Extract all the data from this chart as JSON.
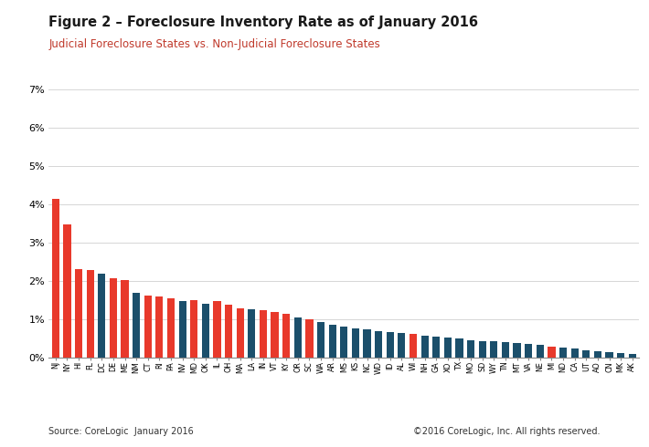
{
  "title": "Figure 2 – Foreclosure Inventory Rate as of January 2016",
  "subtitle": "Judicial Foreclosure States vs. Non-Judicial Foreclosure States",
  "title_color": "#1a1a1a",
  "subtitle_color": "#c0392b",
  "source_left": "Source: CoreLogic  January 2016",
  "source_right": "©2016 CoreLogic, Inc. All rights reserved.",
  "judicial_color": "#e8392b",
  "nonjudicial_color": "#1b4f6b",
  "ylim": [
    0,
    0.07
  ],
  "yticks": [
    0.0,
    0.01,
    0.02,
    0.03,
    0.04,
    0.05,
    0.06,
    0.07
  ],
  "ytick_labels": [
    "0%",
    "1%",
    "2%",
    "3%",
    "4%",
    "5%",
    "6%",
    "7%"
  ],
  "bars": [
    {
      "state": "NJ",
      "type": "J",
      "value": 0.0415
    },
    {
      "state": "NY",
      "type": "J",
      "value": 0.0348
    },
    {
      "state": "HI",
      "type": "J",
      "value": 0.0232
    },
    {
      "state": "FL",
      "type": "J",
      "value": 0.0228
    },
    {
      "state": "DC",
      "type": "NJ",
      "value": 0.022
    },
    {
      "state": "DE",
      "type": "J",
      "value": 0.0207
    },
    {
      "state": "ME",
      "type": "J",
      "value": 0.0202
    },
    {
      "state": "NM",
      "type": "NJ",
      "value": 0.017
    },
    {
      "state": "CT",
      "type": "J",
      "value": 0.0163
    },
    {
      "state": "RI",
      "type": "J",
      "value": 0.016
    },
    {
      "state": "PA",
      "type": "J",
      "value": 0.0155
    },
    {
      "state": "NV",
      "type": "NJ",
      "value": 0.0148
    },
    {
      "state": "MD",
      "type": "J",
      "value": 0.015
    },
    {
      "state": "OK",
      "type": "NJ",
      "value": 0.014
    },
    {
      "state": "IL",
      "type": "J",
      "value": 0.0148
    },
    {
      "state": "OH",
      "type": "J",
      "value": 0.0138
    },
    {
      "state": "MA",
      "type": "J",
      "value": 0.0128
    },
    {
      "state": "LA",
      "type": "NJ",
      "value": 0.0126
    },
    {
      "state": "IN",
      "type": "J",
      "value": 0.0124
    },
    {
      "state": "VT",
      "type": "J",
      "value": 0.012
    },
    {
      "state": "KY",
      "type": "J",
      "value": 0.0115
    },
    {
      "state": "OR",
      "type": "NJ",
      "value": 0.0105
    },
    {
      "state": "SC",
      "type": "J",
      "value": 0.01
    },
    {
      "state": "WA",
      "type": "NJ",
      "value": 0.0092
    },
    {
      "state": "AR",
      "type": "NJ",
      "value": 0.0086
    },
    {
      "state": "MS",
      "type": "NJ",
      "value": 0.0082
    },
    {
      "state": "KS",
      "type": "NJ",
      "value": 0.0077
    },
    {
      "state": "NC",
      "type": "NJ",
      "value": 0.0074
    },
    {
      "state": "WD",
      "type": "NJ",
      "value": 0.007
    },
    {
      "state": "ID",
      "type": "NJ",
      "value": 0.0067
    },
    {
      "state": "AL",
      "type": "NJ",
      "value": 0.0064
    },
    {
      "state": "WI",
      "type": "J",
      "value": 0.0061
    },
    {
      "state": "NH",
      "type": "NJ",
      "value": 0.0058
    },
    {
      "state": "GA",
      "type": "NJ",
      "value": 0.0055
    },
    {
      "state": "XO",
      "type": "NJ",
      "value": 0.0052
    },
    {
      "state": "TX",
      "type": "NJ",
      "value": 0.0049
    },
    {
      "state": "MO",
      "type": "NJ",
      "value": 0.0046
    },
    {
      "state": "SD",
      "type": "NJ",
      "value": 0.0044
    },
    {
      "state": "WY",
      "type": "NJ",
      "value": 0.0042
    },
    {
      "state": "TN",
      "type": "NJ",
      "value": 0.004
    },
    {
      "state": "MT",
      "type": "NJ",
      "value": 0.0038
    },
    {
      "state": "VA",
      "type": "NJ",
      "value": 0.0035
    },
    {
      "state": "NE",
      "type": "NJ",
      "value": 0.0033
    },
    {
      "state": "MI",
      "type": "J",
      "value": 0.0028
    },
    {
      "state": "ND",
      "type": "NJ",
      "value": 0.0026
    },
    {
      "state": "CA",
      "type": "NJ",
      "value": 0.0023
    },
    {
      "state": "UT",
      "type": "NJ",
      "value": 0.002
    },
    {
      "state": "AO",
      "type": "NJ",
      "value": 0.0017
    },
    {
      "state": "CN",
      "type": "NJ",
      "value": 0.0015
    },
    {
      "state": "MK",
      "type": "NJ",
      "value": 0.0012
    },
    {
      "state": "AK",
      "type": "NJ",
      "value": 0.0009
    }
  ]
}
